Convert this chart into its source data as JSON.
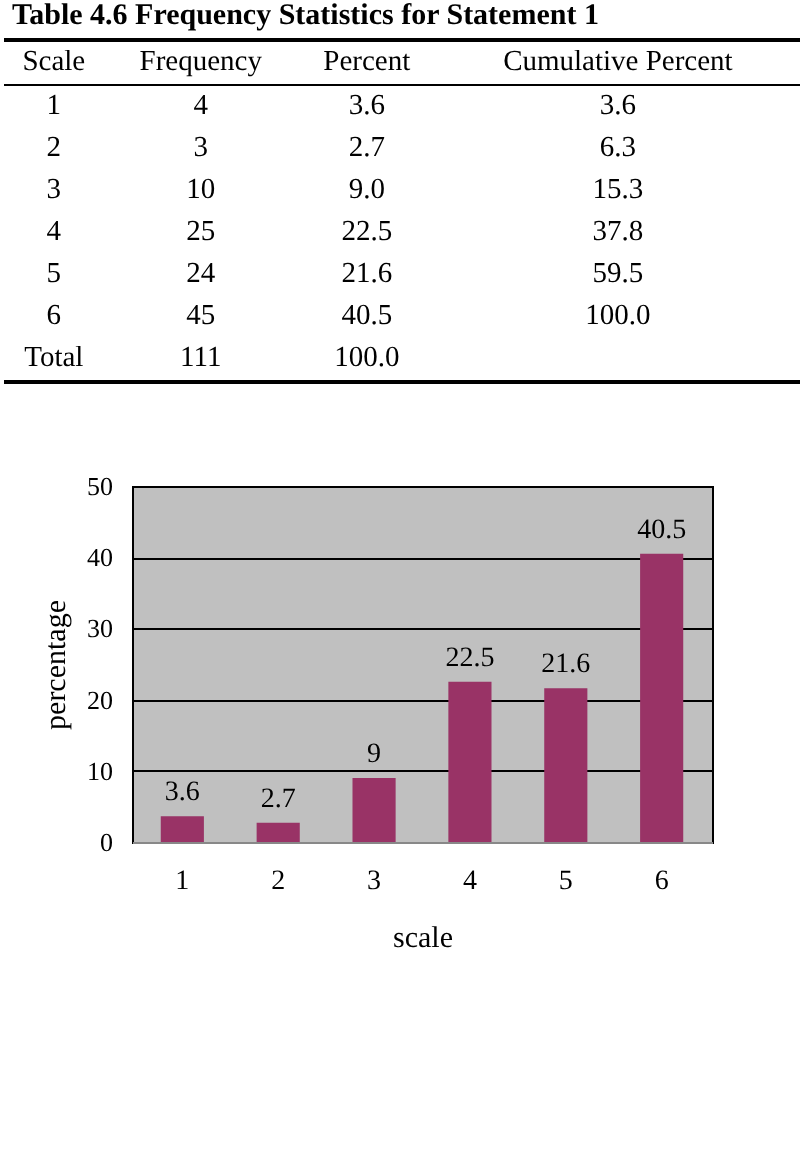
{
  "chart_data": {
    "type": "bar",
    "title": "Table 4.6 Frequency Statistics for Statement 1",
    "annotations": [
      "Scale",
      "Frequency",
      "Percent",
      "Cumulative Percent",
      "1",
      "4",
      "3.6",
      "3.6",
      "2",
      "3",
      "2.7",
      "6.3",
      "3",
      "10",
      "9.0",
      "15.3",
      "4",
      "25",
      "22.5",
      "37.8",
      "5",
      "24",
      "21.6",
      "59.5",
      "6",
      "45",
      "40.5",
      "100.0",
      "Total",
      "111",
      "100.0"
    ],
    "categories": [
      "1",
      "2",
      "3",
      "4",
      "5",
      "6"
    ],
    "values": [
      3.6,
      2.7,
      9,
      22.5,
      21.6,
      40.5
    ],
    "color": "#993366",
    "xlabel": "scale",
    "ylabel": "percentage",
    "ylim": [
      0,
      50
    ],
    "yticks": [
      0,
      10,
      20,
      30,
      40,
      50
    ],
    "grid": "y",
    "data_labels": true
  }
}
